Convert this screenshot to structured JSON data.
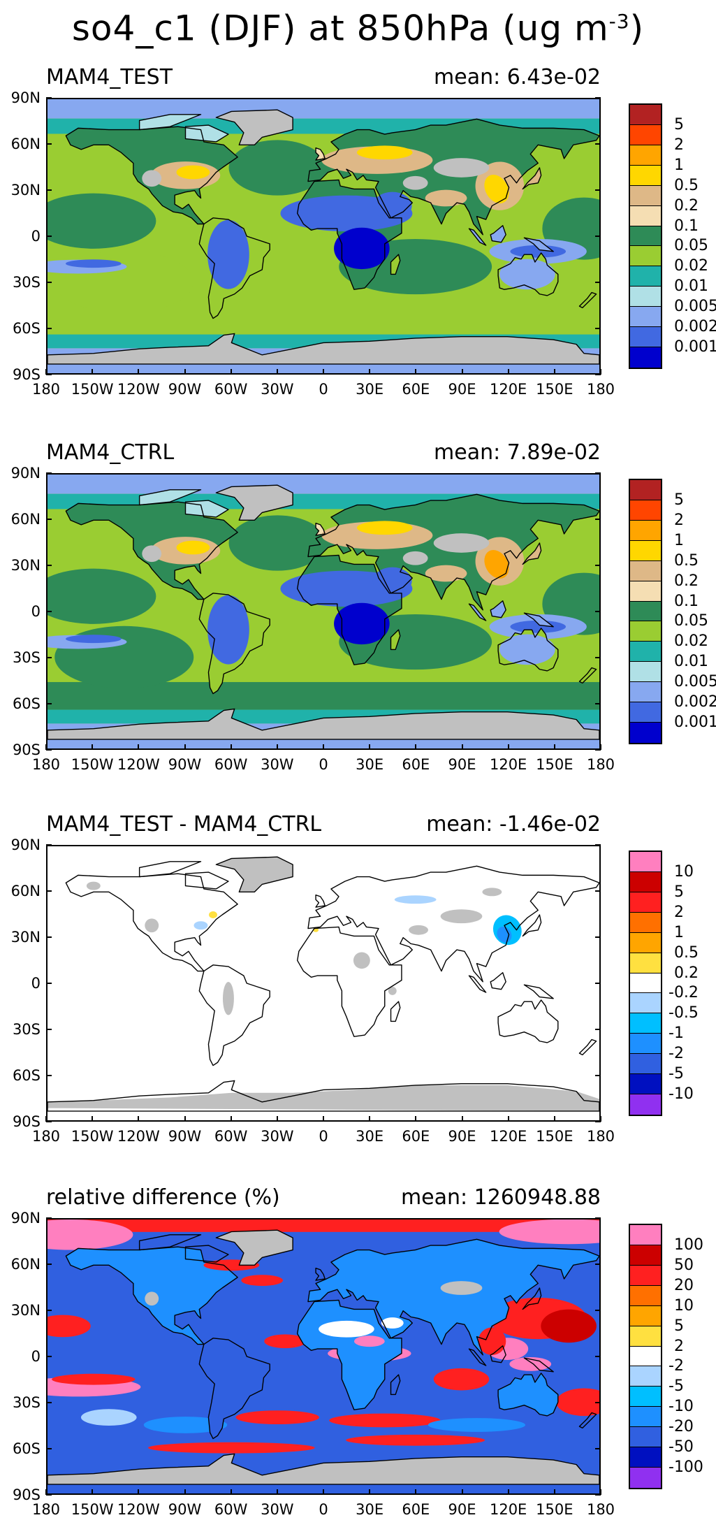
{
  "title": {
    "text": "so4_c1 (DJF) at 850hPa (ug m",
    "exponent": "-3",
    "close": ")"
  },
  "lat_labels": [
    "90N",
    "60N",
    "30N",
    "0",
    "30S",
    "60S",
    "90S"
  ],
  "lon_labels": [
    "180",
    "150W",
    "120W",
    "90W",
    "60W",
    "30W",
    "0",
    "30E",
    "60E",
    "90E",
    "120E",
    "150E",
    "180"
  ],
  "panels": [
    {
      "name": "MAM4_TEST",
      "mean": "mean: 6.43e-02",
      "scheme": "abs",
      "levels": [
        "5",
        "2",
        "1",
        "0.5",
        "0.2",
        "0.1",
        "0.05",
        "0.02",
        "0.01",
        "0.005",
        "0.002",
        "0.001"
      ],
      "colors": [
        "#b22222",
        "#ff4500",
        "#ffa500",
        "#ffd700",
        "#deb887",
        "#f5deb3",
        "#2e8b57",
        "#9acd32",
        "#20b2aa",
        "#b0e0e6",
        "#87a8f0",
        "#4169e1",
        "#0000cd"
      ]
    },
    {
      "name": "MAM4_CTRL",
      "mean": "mean: 7.89e-02",
      "scheme": "abs2",
      "levels": [
        "5",
        "2",
        "1",
        "0.5",
        "0.2",
        "0.1",
        "0.05",
        "0.02",
        "0.01",
        "0.005",
        "0.002",
        "0.001"
      ],
      "colors": [
        "#b22222",
        "#ff4500",
        "#ffa500",
        "#ffd700",
        "#deb887",
        "#f5deb3",
        "#2e8b57",
        "#9acd32",
        "#20b2aa",
        "#b0e0e6",
        "#87a8f0",
        "#4169e1",
        "#0000cd"
      ]
    },
    {
      "name": "MAM4_TEST - MAM4_CTRL",
      "mean": "mean: -1.46e-02",
      "scheme": "diff",
      "levels": [
        "10",
        "5",
        "2",
        "1",
        "0.5",
        "0.2",
        "-0.2",
        "-0.5",
        "-1",
        "-2",
        "-5",
        "-10"
      ],
      "colors": [
        "#ff7fbf",
        "#cc0000",
        "#ff2020",
        "#ff7000",
        "#ffa500",
        "#ffe040",
        "#ffffff",
        "#aad4ff",
        "#00bfff",
        "#1e90ff",
        "#3060e0",
        "#0010c0",
        "#9030f0"
      ]
    },
    {
      "name": "relative difference (%)",
      "mean": "mean: 1260948.88",
      "scheme": "rel",
      "levels": [
        "100",
        "50",
        "20",
        "10",
        "5",
        "2",
        "-2",
        "-5",
        "-10",
        "-20",
        "-50",
        "-100"
      ],
      "colors": [
        "#ff7fbf",
        "#cc0000",
        "#ff2020",
        "#ff7000",
        "#ffa500",
        "#ffe040",
        "#ffffff",
        "#aad4ff",
        "#00bfff",
        "#1e90ff",
        "#3060e0",
        "#0010c0",
        "#9030f0"
      ]
    }
  ]
}
